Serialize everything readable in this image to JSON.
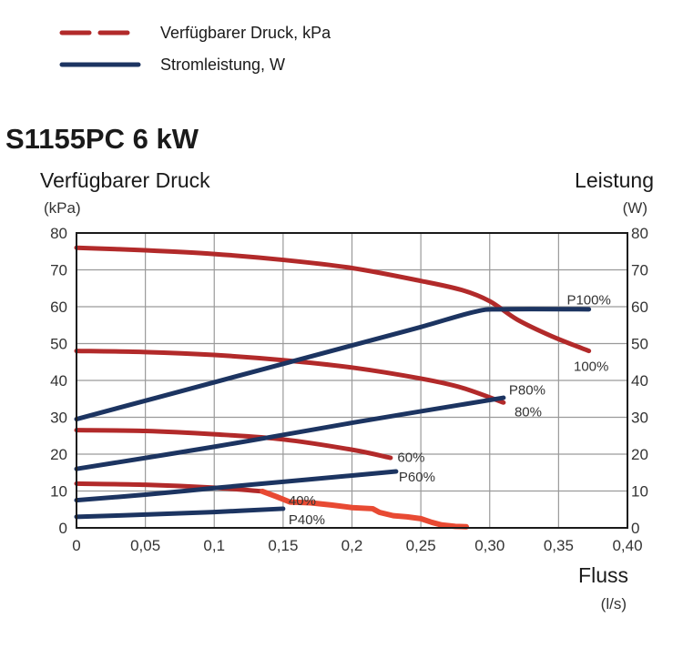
{
  "chart_data": {
    "type": "line",
    "title": "S1155PC 6 kW",
    "legend": [
      {
        "label": "Verfügbarer Druck, kPa",
        "color": "#b22a2a",
        "style": "dashed"
      },
      {
        "label": "Stromleistung, W",
        "color": "#1c3461",
        "style": "solid"
      }
    ],
    "legend_position": "top-left",
    "xlabel": "Fluss",
    "xunit": "(l/s)",
    "ylabel_left": "Verfügbarer Druck",
    "yunit_left": "(kPa)",
    "ylabel_right": "Leistung",
    "yunit_right": "(W)",
    "xlim": [
      0,
      0.4
    ],
    "ylim": [
      0,
      80
    ],
    "grid": true,
    "x_ticks": [
      0,
      0.05,
      0.1,
      0.15,
      0.2,
      0.25,
      0.3,
      0.35,
      0.4
    ],
    "x_tick_labels": [
      "0",
      "0,05",
      "0,1",
      "0,15",
      "0,2",
      "0,25",
      "0,30",
      "0,35",
      "0,40"
    ],
    "y_ticks": [
      0,
      10,
      20,
      30,
      40,
      50,
      60,
      70,
      80
    ],
    "y_tick_labels": [
      "0",
      "10",
      "20",
      "30",
      "40",
      "50",
      "60",
      "70",
      "80"
    ],
    "series": [
      {
        "name": "100%",
        "kind": "pressure",
        "color": "#b22a2a",
        "x": [
          0,
          0.05,
          0.1,
          0.15,
          0.2,
          0.25,
          0.28,
          0.3,
          0.32,
          0.345,
          0.372
        ],
        "y": [
          76,
          75.3,
          74.3,
          72.7,
          70.5,
          67,
          64.5,
          61.5,
          56.5,
          52,
          48
        ]
      },
      {
        "name": "80%",
        "kind": "pressure",
        "color": "#b22a2a",
        "x": [
          0,
          0.05,
          0.1,
          0.15,
          0.2,
          0.25,
          0.28,
          0.31
        ],
        "y": [
          48,
          47.7,
          46.9,
          45.5,
          43.5,
          40.5,
          38,
          34
        ]
      },
      {
        "name": "60%",
        "kind": "pressure",
        "color": "#b22a2a",
        "x": [
          0,
          0.05,
          0.1,
          0.15,
          0.2,
          0.228
        ],
        "y": [
          26.5,
          26.3,
          25.4,
          24,
          21.2,
          19
        ]
      },
      {
        "name": "40%",
        "kind": "pressure",
        "color": "#b22a2a",
        "x": [
          0,
          0.05,
          0.1,
          0.135
        ],
        "y": [
          12,
          11.7,
          10.9,
          9.9
        ]
      },
      {
        "name": "40%",
        "kind": "pressure-extension",
        "color": "#e84a33",
        "x": [
          0.135,
          0.145,
          0.155,
          0.17,
          0.185,
          0.2,
          0.215,
          0.22,
          0.23,
          0.24,
          0.25,
          0.258,
          0.265,
          0.275,
          0.283
        ],
        "y": [
          9.9,
          8.5,
          7,
          6.8,
          6.2,
          5.5,
          5.2,
          4.2,
          3.3,
          3.0,
          2.5,
          1.5,
          0.8,
          0.4,
          0.3
        ]
      },
      {
        "name": "P100%",
        "kind": "power",
        "color": "#1c3461",
        "x": [
          0,
          0.1,
          0.2,
          0.25,
          0.29,
          0.31,
          0.372
        ],
        "y": [
          29.5,
          39.5,
          49.5,
          54.5,
          58.7,
          59.3,
          59.3
        ]
      },
      {
        "name": "P80%",
        "kind": "power",
        "color": "#1c3461",
        "x": [
          0,
          0.1,
          0.2,
          0.31
        ],
        "y": [
          16,
          22,
          28.5,
          35.3
        ]
      },
      {
        "name": "P60%",
        "kind": "power",
        "color": "#1c3461",
        "x": [
          0,
          0.05,
          0.1,
          0.15,
          0.2,
          0.232
        ],
        "y": [
          7.5,
          9,
          10.8,
          12.5,
          14.2,
          15.3
        ]
      },
      {
        "name": "P40%",
        "kind": "power",
        "color": "#1c3461",
        "x": [
          0,
          0.05,
          0.1,
          0.15
        ],
        "y": [
          3,
          3.6,
          4.3,
          5.2
        ]
      }
    ],
    "annotations": [
      {
        "text": "P100%",
        "x": 0.356,
        "y": 61.8
      },
      {
        "text": "100%",
        "x": 0.361,
        "y": 43.8
      },
      {
        "text": "P80%",
        "x": 0.314,
        "y": 37.4
      },
      {
        "text": "80%",
        "x": 0.318,
        "y": 31.5
      },
      {
        "text": "60%",
        "x": 0.233,
        "y": 19.1
      },
      {
        "text": "P60%",
        "x": 0.234,
        "y": 13.8
      },
      {
        "text": "40%",
        "x": 0.154,
        "y": 7.4
      },
      {
        "text": "P40%",
        "x": 0.154,
        "y": 2.2
      }
    ]
  }
}
